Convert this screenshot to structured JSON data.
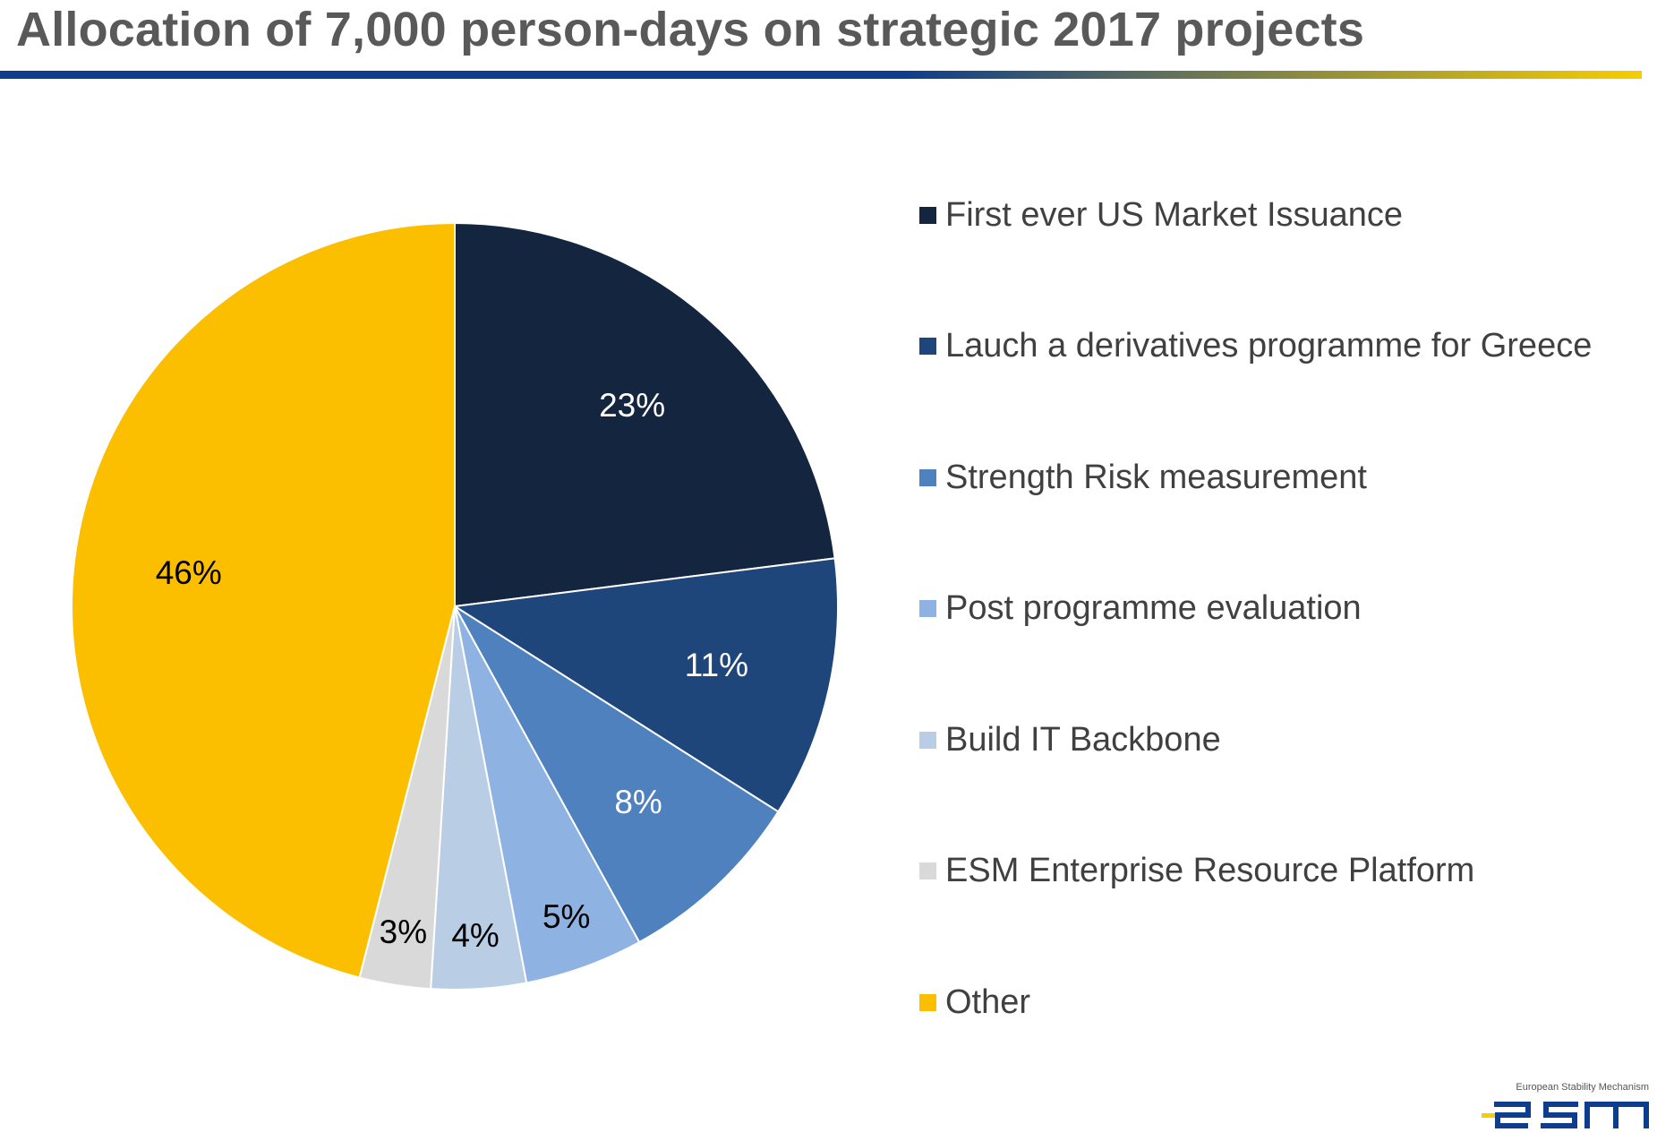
{
  "title": "Allocation of 7,000 person-days on strategic 2017 projects",
  "colors": {
    "title_text": "#595959",
    "rule_start": "#0d3d8c",
    "rule_end": "#f7cd00",
    "label_dark": "#000000",
    "label_light": "#ffffff"
  },
  "chart_data": {
    "type": "pie",
    "start_angle_deg": 0,
    "direction": "clockwise",
    "slices": [
      {
        "label": "First ever US Market Issuance",
        "value": 23,
        "value_label": "23%",
        "color": "#13253f",
        "label_color": "#ffffff"
      },
      {
        "label": "Lauch a derivatives programme for Greece",
        "value": 11,
        "value_label": "11%",
        "color": "#1f467a",
        "label_color": "#ffffff"
      },
      {
        "label": "Strength Risk measurement",
        "value": 8,
        "value_label": "8%",
        "color": "#4e81be",
        "label_color": "#ffffff"
      },
      {
        "label": "Post programme evaluation",
        "value": 5,
        "value_label": "5%",
        "color": "#8eb3e2",
        "label_color": "#000000"
      },
      {
        "label": "Build IT Backbone",
        "value": 4,
        "value_label": "4%",
        "color": "#b9cde5",
        "label_color": "#000000"
      },
      {
        "label": "ESM Enterprise Resource Platform",
        "value": 3,
        "value_label": "3%",
        "color": "#d9d9d9",
        "label_color": "#000000"
      },
      {
        "label": "Other",
        "value": 46,
        "value_label": "46%",
        "color": "#fcbf00",
        "label_color": "#000000"
      }
    ],
    "legend_position": "right"
  },
  "logo": {
    "caption": "European Stability Mechanism",
    "brand": "esm",
    "colors": {
      "navy": "#0d3d8c",
      "yellow": "#f7cd00"
    }
  }
}
